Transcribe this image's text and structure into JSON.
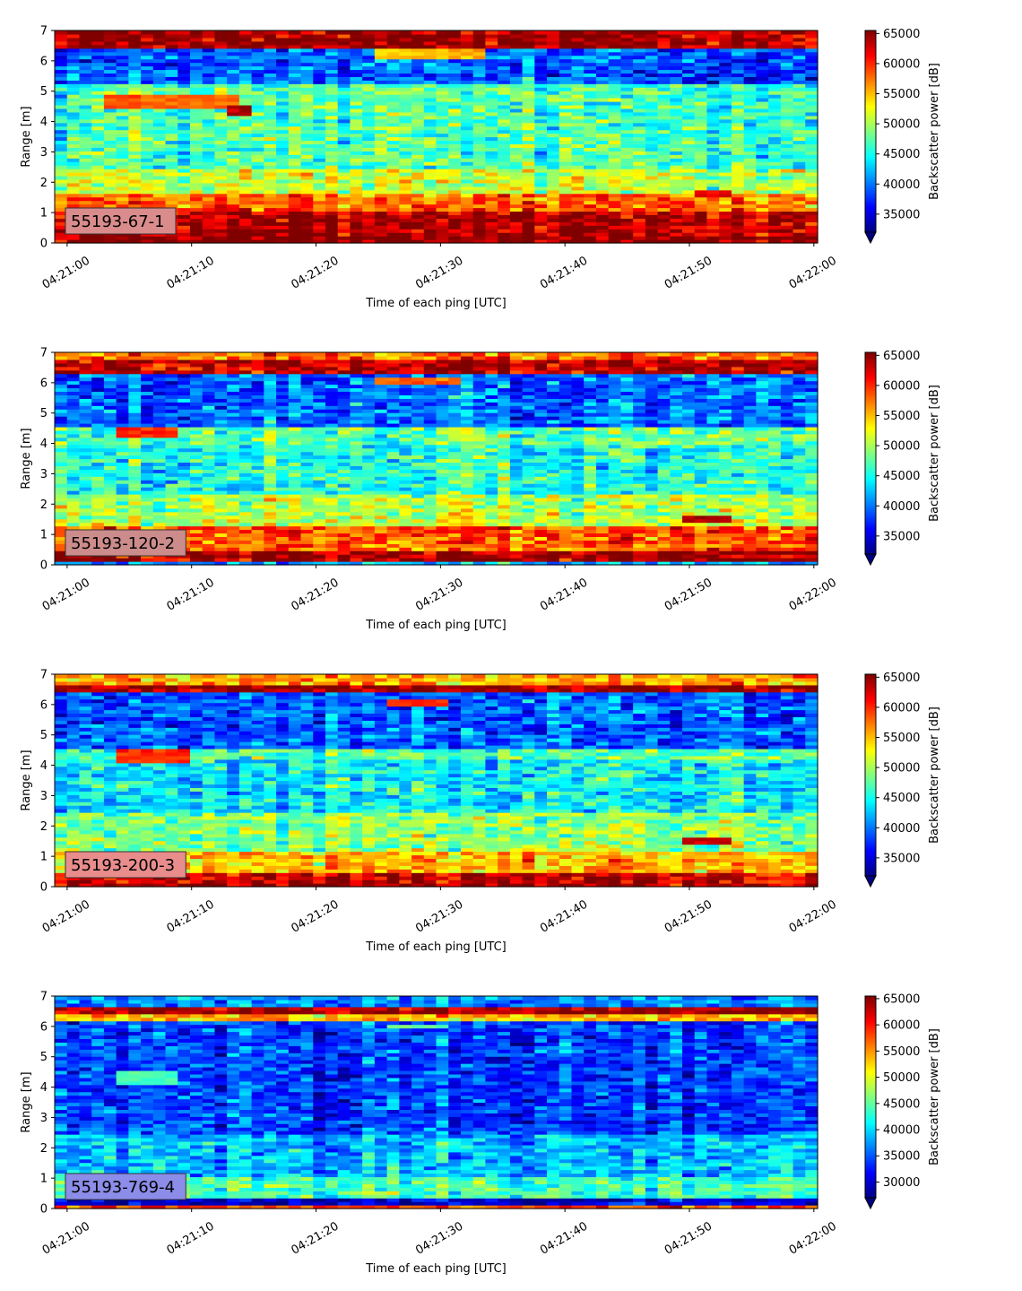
{
  "chart_data": [
    {
      "type": "heatmap",
      "label": "55193-67-1",
      "xlabel": "Time of each ping [UTC]",
      "ylabel": "Range [m]",
      "xticks": [
        "04:21:00",
        "04:21:10",
        "04:21:20",
        "04:21:30",
        "04:21:40",
        "04:21:50",
        "04:22:00"
      ],
      "xlim_seconds": [
        -1,
        60.3
      ],
      "yticks": [
        0,
        1,
        2,
        3,
        4,
        5,
        6,
        7
      ],
      "ylim": [
        0,
        7
      ],
      "colorbar_label": "Backscatter power [dB]",
      "colorbar_range": [
        32000,
        65500
      ],
      "colorbar_ticks": [
        35000,
        40000,
        45000,
        50000,
        55000,
        60000,
        65000
      ],
      "colormap": "jet",
      "bands": [
        {
          "range_m": [
            0.0,
            0.25
          ],
          "mean": 65000
        },
        {
          "range_m": [
            0.25,
            1.1
          ],
          "mean": 64000
        },
        {
          "range_m": [
            1.1,
            1.6
          ],
          "mean": 58000
        },
        {
          "range_m": [
            1.6,
            2.5
          ],
          "mean": 51000
        },
        {
          "range_m": [
            2.5,
            4.0
          ],
          "mean": 47000
        },
        {
          "range_m": [
            4.0,
            5.2
          ],
          "mean": 47000
        },
        {
          "range_m": [
            5.2,
            6.4
          ],
          "mean": 39000
        },
        {
          "range_m": [
            6.4,
            7.0
          ],
          "mean": 64500
        }
      ],
      "features": [
        {
          "t": [
            3,
            14
          ],
          "range_m": [
            4.4,
            4.9
          ],
          "value": 58000
        },
        {
          "t": [
            13,
            15
          ],
          "range_m": [
            4.2,
            4.5
          ],
          "value": 64000
        },
        {
          "t": [
            25,
            34
          ],
          "range_m": [
            6.1,
            6.4
          ],
          "value": 55000
        },
        {
          "t": [
            50,
            53
          ],
          "range_m": [
            1.5,
            1.8
          ],
          "value": 62000
        }
      ]
    },
    {
      "type": "heatmap",
      "label": "55193-120-2",
      "xlabel": "Time of each ping [UTC]",
      "ylabel": "Range [m]",
      "xticks": [
        "04:21:00",
        "04:21:10",
        "04:21:20",
        "04:21:30",
        "04:21:40",
        "04:21:50",
        "04:22:00"
      ],
      "xlim_seconds": [
        -1,
        60.3
      ],
      "yticks": [
        0,
        1,
        2,
        3,
        4,
        5,
        6,
        7
      ],
      "ylim": [
        0,
        7
      ],
      "colorbar_label": "Backscatter power [dB]",
      "colorbar_range": [
        32000,
        65500
      ],
      "colorbar_ticks": [
        35000,
        40000,
        45000,
        50000,
        55000,
        60000,
        65000
      ],
      "colormap": "jet",
      "bands": [
        {
          "range_m": [
            0.0,
            0.12
          ],
          "mean": 42000
        },
        {
          "range_m": [
            0.12,
            0.5
          ],
          "mean": 65000
        },
        {
          "range_m": [
            0.5,
            1.3
          ],
          "mean": 59000
        },
        {
          "range_m": [
            1.3,
            2.3
          ],
          "mean": 51000
        },
        {
          "range_m": [
            2.3,
            4.0
          ],
          "mean": 46000
        },
        {
          "range_m": [
            4.0,
            4.6
          ],
          "mean": 48000
        },
        {
          "range_m": [
            4.6,
            6.3
          ],
          "mean": 40000
        },
        {
          "range_m": [
            6.3,
            6.8
          ],
          "mean": 64000
        },
        {
          "range_m": [
            6.8,
            7.0
          ],
          "mean": 58000
        }
      ],
      "features": [
        {
          "t": [
            4,
            9
          ],
          "range_m": [
            4.2,
            4.6
          ],
          "value": 60000
        },
        {
          "t": [
            25,
            32
          ],
          "range_m": [
            5.9,
            6.2
          ],
          "value": 58000
        },
        {
          "t": [
            49,
            53
          ],
          "range_m": [
            1.4,
            1.6
          ],
          "value": 64000
        }
      ]
    },
    {
      "type": "heatmap",
      "label": "55193-200-3",
      "xlabel": "Time of each ping [UTC]",
      "ylabel": "Range [m]",
      "xticks": [
        "04:21:00",
        "04:21:10",
        "04:21:20",
        "04:21:30",
        "04:21:40",
        "04:21:50",
        "04:22:00"
      ],
      "xlim_seconds": [
        -1,
        60.3
      ],
      "yticks": [
        0,
        1,
        2,
        3,
        4,
        5,
        6,
        7
      ],
      "ylim": [
        0,
        7
      ],
      "colorbar_label": "Backscatter power [dB]",
      "colorbar_range": [
        32000,
        65500
      ],
      "colorbar_ticks": [
        35000,
        40000,
        45000,
        50000,
        55000,
        60000,
        65000
      ],
      "colormap": "jet",
      "bands": [
        {
          "range_m": [
            0.0,
            0.15
          ],
          "mean": 64000
        },
        {
          "range_m": [
            0.15,
            0.5
          ],
          "mean": 63000
        },
        {
          "range_m": [
            0.5,
            1.2
          ],
          "mean": 55000
        },
        {
          "range_m": [
            1.2,
            2.5
          ],
          "mean": 49000
        },
        {
          "range_m": [
            2.5,
            4.2
          ],
          "mean": 44000
        },
        {
          "range_m": [
            4.2,
            4.6
          ],
          "mean": 47000
        },
        {
          "range_m": [
            4.6,
            6.4
          ],
          "mean": 39000
        },
        {
          "range_m": [
            6.4,
            6.7
          ],
          "mean": 65000
        },
        {
          "range_m": [
            6.7,
            7.0
          ],
          "mean": 56000
        }
      ],
      "features": [
        {
          "t": [
            4,
            10
          ],
          "range_m": [
            4.1,
            4.6
          ],
          "value": 60000
        },
        {
          "t": [
            26,
            31
          ],
          "range_m": [
            5.9,
            6.2
          ],
          "value": 60000
        },
        {
          "t": [
            49,
            53
          ],
          "range_m": [
            1.4,
            1.6
          ],
          "value": 64000
        }
      ]
    },
    {
      "type": "heatmap",
      "label": "55193-769-4",
      "xlabel": "Time of each ping [UTC]",
      "ylabel": "Range [m]",
      "xticks": [
        "04:21:00",
        "04:21:10",
        "04:21:20",
        "04:21:30",
        "04:21:40",
        "04:21:50",
        "04:22:00"
      ],
      "xlim_seconds": [
        -1,
        60.3
      ],
      "yticks": [
        0,
        1,
        2,
        3,
        4,
        5,
        6,
        7
      ],
      "ylim": [
        0,
        7
      ],
      "colorbar_label": "Backscatter power [dB]",
      "colorbar_range": [
        27000,
        65500
      ],
      "colorbar_ticks": [
        30000,
        35000,
        40000,
        45000,
        50000,
        55000,
        60000,
        65000
      ],
      "colormap": "jet",
      "bands": [
        {
          "range_m": [
            0.0,
            0.15
          ],
          "mean": 58000
        },
        {
          "range_m": [
            0.15,
            0.35
          ],
          "mean": 30000
        },
        {
          "range_m": [
            0.35,
            1.0
          ],
          "mean": 44000
        },
        {
          "range_m": [
            1.0,
            2.5
          ],
          "mean": 39000
        },
        {
          "range_m": [
            2.5,
            6.2
          ],
          "mean": 34000
        },
        {
          "range_m": [
            6.2,
            6.45
          ],
          "mean": 53000
        },
        {
          "range_m": [
            6.45,
            6.6
          ],
          "mean": 64000
        },
        {
          "range_m": [
            6.6,
            7.0
          ],
          "mean": 37000
        }
      ],
      "features": [
        {
          "t": [
            4,
            9
          ],
          "range_m": [
            4.1,
            4.5
          ],
          "value": 44000
        },
        {
          "t": [
            26,
            31
          ],
          "range_m": [
            5.9,
            6.1
          ],
          "value": 45000
        }
      ]
    }
  ]
}
